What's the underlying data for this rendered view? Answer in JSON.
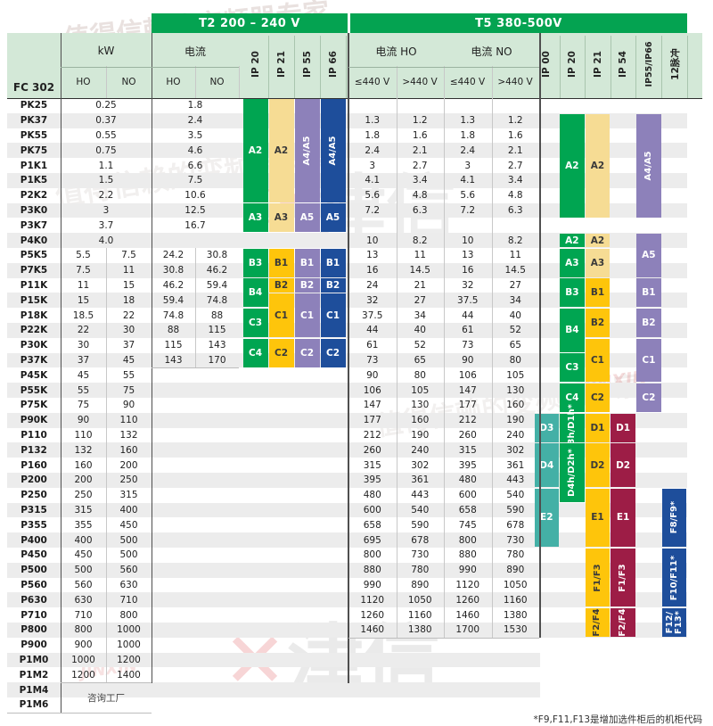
{
  "header": {
    "model_label": "FC 302",
    "kw_label": "kW",
    "ho_label": "HO",
    "no_label": "NO",
    "t2_title": "T2 200 – 240 V",
    "t2_current_label": "电流",
    "t5_title": "T5 380-500V",
    "t5_current_ho_label": "电流 HO",
    "t5_current_no_label": "电流 NO",
    "le440_label": "≤440 V",
    "gt440_label": ">440 V",
    "t2_ip_labels": [
      "IP 20",
      "IP 21",
      "IP 55",
      "IP 66"
    ],
    "t5_ip_labels": [
      "IP 00",
      "IP 20",
      "IP 21",
      "IP 54",
      "IP55/IP66",
      "12脉冲"
    ]
  },
  "colors": {
    "header_bg": "#d3e8d7",
    "title_green": "#04a351",
    "g": "#00a551",
    "py": "#f6dc94",
    "gd": "#fec50b",
    "pu": "#8d81ba",
    "bl": "#1e4e9b",
    "tl": "#44b0a6",
    "mr": "#9d1d46",
    "stripe": "#ececec",
    "dark_line": "#4f4f4f",
    "light_line": "#c8c8c8"
  },
  "rows": [
    {
      "model": "PK25",
      "kw": [
        "0.25"
      ],
      "t2": [
        "1.8"
      ],
      "t5": []
    },
    {
      "model": "PK37",
      "kw": [
        "0.37"
      ],
      "t2": [
        "2.4"
      ],
      "t5": [
        "1.3",
        "1.2",
        "1.3",
        "1.2"
      ]
    },
    {
      "model": "PK55",
      "kw": [
        "0.55"
      ],
      "t2": [
        "3.5"
      ],
      "t5": [
        "1.8",
        "1.6",
        "1.8",
        "1.6"
      ]
    },
    {
      "model": "PK75",
      "kw": [
        "0.75"
      ],
      "t2": [
        "4.6"
      ],
      "t5": [
        "2.4",
        "2.1",
        "2.4",
        "2.1"
      ]
    },
    {
      "model": "P1K1",
      "kw": [
        "1.1"
      ],
      "t2": [
        "6.6"
      ],
      "t5": [
        "3",
        "2.7",
        "3",
        "2.7"
      ]
    },
    {
      "model": "P1K5",
      "kw": [
        "1.5"
      ],
      "t2": [
        "7.5"
      ],
      "t5": [
        "4.1",
        "3.4",
        "4.1",
        "3.4"
      ]
    },
    {
      "model": "P2K2",
      "kw": [
        "2.2"
      ],
      "t2": [
        "10.6"
      ],
      "t5": [
        "5.6",
        "4.8",
        "5.6",
        "4.8"
      ]
    },
    {
      "model": "P3K0",
      "kw": [
        "3"
      ],
      "t2": [
        "12.5"
      ],
      "t5": [
        "7.2",
        "6.3",
        "7.2",
        "6.3"
      ]
    },
    {
      "model": "P3K7",
      "kw": [
        "3.7"
      ],
      "t2": [
        "16.7"
      ],
      "t5": []
    },
    {
      "model": "P4K0",
      "kw": [
        "4.0"
      ],
      "t2": [],
      "t5": [
        "10",
        "8.2",
        "10",
        "8.2"
      ]
    },
    {
      "model": "P5K5",
      "kw": [
        "5.5",
        "7.5"
      ],
      "t2": [
        "24.2",
        "30.8"
      ],
      "t5": [
        "13",
        "11",
        "13",
        "11"
      ]
    },
    {
      "model": "P7K5",
      "kw": [
        "7.5",
        "11"
      ],
      "t2": [
        "30.8",
        "46.2"
      ],
      "t5": [
        "16",
        "14.5",
        "16",
        "14.5"
      ]
    },
    {
      "model": "P11K",
      "kw": [
        "11",
        "15"
      ],
      "t2": [
        "46.2",
        "59.4"
      ],
      "t5": [
        "24",
        "21",
        "32",
        "27"
      ]
    },
    {
      "model": "P15K",
      "kw": [
        "15",
        "18"
      ],
      "t2": [
        "59.4",
        "74.8"
      ],
      "t5": [
        "32",
        "27",
        "37.5",
        "34"
      ]
    },
    {
      "model": "P18K",
      "kw": [
        "18.5",
        "22"
      ],
      "t2": [
        "74.8",
        "88"
      ],
      "t5": [
        "37.5",
        "34",
        "44",
        "40"
      ]
    },
    {
      "model": "P22K",
      "kw": [
        "22",
        "30"
      ],
      "t2": [
        "88",
        "115"
      ],
      "t5": [
        "44",
        "40",
        "61",
        "52"
      ]
    },
    {
      "model": "P30K",
      "kw": [
        "30",
        "37"
      ],
      "t2": [
        "115",
        "143"
      ],
      "t5": [
        "61",
        "52",
        "73",
        "65"
      ]
    },
    {
      "model": "P37K",
      "kw": [
        "37",
        "45"
      ],
      "t2": [
        "143",
        "170"
      ],
      "t5": [
        "73",
        "65",
        "90",
        "80"
      ]
    },
    {
      "model": "P45K",
      "kw": [
        "45",
        "55"
      ],
      "t2": [],
      "t5": [
        "90",
        "80",
        "106",
        "105"
      ]
    },
    {
      "model": "P55K",
      "kw": [
        "55",
        "75"
      ],
      "t2": [],
      "t5": [
        "106",
        "105",
        "147",
        "130"
      ]
    },
    {
      "model": "P75K",
      "kw": [
        "75",
        "90"
      ],
      "t2": [],
      "t5": [
        "147",
        "130",
        "177",
        "160"
      ]
    },
    {
      "model": "P90K",
      "kw": [
        "90",
        "110"
      ],
      "t2": [],
      "t5": [
        "177",
        "160",
        "212",
        "190"
      ]
    },
    {
      "model": "P110",
      "kw": [
        "110",
        "132"
      ],
      "t2": [],
      "t5": [
        "212",
        "190",
        "260",
        "240"
      ]
    },
    {
      "model": "P132",
      "kw": [
        "132",
        "160"
      ],
      "t2": [],
      "t5": [
        "260",
        "240",
        "315",
        "302"
      ]
    },
    {
      "model": "P160",
      "kw": [
        "160",
        "200"
      ],
      "t2": [],
      "t5": [
        "315",
        "302",
        "395",
        "361"
      ]
    },
    {
      "model": "P200",
      "kw": [
        "200",
        "250"
      ],
      "t2": [],
      "t5": [
        "395",
        "361",
        "480",
        "443"
      ]
    },
    {
      "model": "P250",
      "kw": [
        "250",
        "315"
      ],
      "t2": [],
      "t5": [
        "480",
        "443",
        "600",
        "540"
      ]
    },
    {
      "model": "P315",
      "kw": [
        "315",
        "400"
      ],
      "t2": [],
      "t5": [
        "600",
        "540",
        "658",
        "590"
      ]
    },
    {
      "model": "P355",
      "kw": [
        "355",
        "450"
      ],
      "t2": [],
      "t5": [
        "658",
        "590",
        "745",
        "678"
      ]
    },
    {
      "model": "P400",
      "kw": [
        "400",
        "500"
      ],
      "t2": [],
      "t5": [
        "695",
        "678",
        "800",
        "730"
      ]
    },
    {
      "model": "P450",
      "kw": [
        "450",
        "500"
      ],
      "t2": [],
      "t5": [
        "800",
        "730",
        "880",
        "780"
      ]
    },
    {
      "model": "P500",
      "kw": [
        "500",
        "560"
      ],
      "t2": [],
      "t5": [
        "880",
        "780",
        "990",
        "890"
      ]
    },
    {
      "model": "P560",
      "kw": [
        "560",
        "630"
      ],
      "t2": [],
      "t5": [
        "990",
        "890",
        "1120",
        "1050"
      ]
    },
    {
      "model": "P630",
      "kw": [
        "630",
        "710"
      ],
      "t2": [],
      "t5": [
        "1120",
        "1050",
        "1260",
        "1160"
      ]
    },
    {
      "model": "P710",
      "kw": [
        "710",
        "800"
      ],
      "t2": [],
      "t5": [
        "1260",
        "1160",
        "1460",
        "1380"
      ]
    },
    {
      "model": "P800",
      "kw": [
        "800",
        "1000"
      ],
      "t2": [],
      "t5": [
        "1460",
        "1380",
        "1700",
        "1530"
      ]
    },
    {
      "model": "P900",
      "kw": [
        "900",
        "1000"
      ],
      "t2": [],
      "t5": []
    },
    {
      "model": "P1M0",
      "kw": [
        "1000",
        "1200"
      ],
      "t2": [],
      "t5": []
    },
    {
      "model": "P1M2",
      "kw": [
        "1200",
        "1400"
      ],
      "t2": [],
      "t5": []
    },
    {
      "model": "P1M4",
      "kw": [],
      "t2": [],
      "t5": []
    },
    {
      "model": "P1M6",
      "kw": [],
      "t2": [],
      "t5": []
    }
  ],
  "factory_note": "咨询工厂",
  "footnote": "*F9,F11,F13是增加选件柜后的机柜代码",
  "blocks": {
    "t2_ip20": [
      {
        "label": "A2",
        "row": 0,
        "span": 7,
        "c": "g"
      },
      {
        "label": "A3",
        "row": 7,
        "span": 2,
        "c": "g"
      },
      {
        "label": "B3",
        "row": 10,
        "span": 2,
        "c": "g"
      },
      {
        "label": "B4",
        "row": 12,
        "span": 2,
        "c": "g"
      },
      {
        "label": "C3",
        "row": 14,
        "span": 2,
        "c": "g"
      },
      {
        "label": "C4",
        "row": 16,
        "span": 2,
        "c": "g"
      }
    ],
    "t2_ip21": [
      {
        "label": "A2",
        "row": 0,
        "span": 7,
        "c": "py"
      },
      {
        "label": "A3",
        "row": 7,
        "span": 2,
        "c": "py"
      },
      {
        "label": "B1",
        "row": 10,
        "span": 2,
        "c": "gd"
      },
      {
        "label": "B2",
        "row": 12,
        "span": 1,
        "c": "gd"
      },
      {
        "label": "C1",
        "row": 13,
        "span": 3,
        "c": "gd"
      },
      {
        "label": "C2",
        "row": 16,
        "span": 2,
        "c": "gd"
      }
    ],
    "t2_ip55": [
      {
        "label": "A4/A5",
        "row": 0,
        "span": 7,
        "c": "pu",
        "rot": true
      },
      {
        "label": "A5",
        "row": 7,
        "span": 2,
        "c": "pu"
      },
      {
        "label": "B1",
        "row": 10,
        "span": 2,
        "c": "pu"
      },
      {
        "label": "B2",
        "row": 12,
        "span": 1,
        "c": "pu"
      },
      {
        "label": "C1",
        "row": 13,
        "span": 3,
        "c": "pu"
      },
      {
        "label": "C2",
        "row": 16,
        "span": 2,
        "c": "pu"
      }
    ],
    "t2_ip66": [
      {
        "label": "A4/A5",
        "row": 0,
        "span": 7,
        "c": "bl",
        "rot": true
      },
      {
        "label": "A5",
        "row": 7,
        "span": 2,
        "c": "bl"
      },
      {
        "label": "B1",
        "row": 10,
        "span": 2,
        "c": "bl"
      },
      {
        "label": "B2",
        "row": 12,
        "span": 1,
        "c": "bl"
      },
      {
        "label": "C1",
        "row": 13,
        "span": 3,
        "c": "bl"
      },
      {
        "label": "C2",
        "row": 16,
        "span": 2,
        "c": "bl"
      }
    ],
    "t5_ip00": [
      {
        "label": "D3",
        "row": 21,
        "span": 2,
        "c": "tl"
      },
      {
        "label": "D4",
        "row": 23,
        "span": 3,
        "c": "tl"
      },
      {
        "label": "E2",
        "row": 26,
        "span": 4,
        "c": "tl"
      }
    ],
    "t5_ip20": [
      {
        "label": "A2",
        "row": 1,
        "span": 7,
        "c": "g"
      },
      {
        "label": "A2",
        "row": 9,
        "span": 1,
        "c": "g"
      },
      {
        "label": "A3",
        "row": 10,
        "span": 2,
        "c": "g"
      },
      {
        "label": "B3",
        "row": 12,
        "span": 2,
        "c": "g"
      },
      {
        "label": "B4",
        "row": 14,
        "span": 3,
        "c": "g"
      },
      {
        "label": "C3",
        "row": 17,
        "span": 2,
        "c": "g"
      },
      {
        "label": "C4",
        "row": 19,
        "span": 2,
        "c": "g"
      },
      {
        "label": "D3h/D1h*",
        "row": 21,
        "span": 2,
        "c": "g",
        "rot": true
      },
      {
        "label": "D4h/D2h*",
        "row": 23,
        "span": 4,
        "c": "g",
        "rot": true
      }
    ],
    "t5_ip21": [
      {
        "label": "A2",
        "row": 1,
        "span": 7,
        "c": "py"
      },
      {
        "label": "A2",
        "row": 9,
        "span": 1,
        "c": "py"
      },
      {
        "label": "A3",
        "row": 10,
        "span": 2,
        "c": "py"
      },
      {
        "label": "B1",
        "row": 12,
        "span": 2,
        "c": "gd"
      },
      {
        "label": "B2",
        "row": 14,
        "span": 2,
        "c": "gd"
      },
      {
        "label": "C1",
        "row": 16,
        "span": 3,
        "c": "gd"
      },
      {
        "label": "C2",
        "row": 19,
        "span": 2,
        "c": "gd"
      },
      {
        "label": "D1",
        "row": 21,
        "span": 2,
        "c": "gd"
      },
      {
        "label": "D2",
        "row": 23,
        "span": 3,
        "c": "gd"
      },
      {
        "label": "E1",
        "row": 26,
        "span": 4,
        "c": "gd"
      },
      {
        "label": "F1/F3",
        "row": 30,
        "span": 4,
        "c": "gd",
        "rot": true
      },
      {
        "label": "F2/F4",
        "row": 34,
        "span": 2,
        "c": "gd",
        "rot": true
      }
    ],
    "t5_ip54": [
      {
        "label": "D1",
        "row": 21,
        "span": 2,
        "c": "mr"
      },
      {
        "label": "D2",
        "row": 23,
        "span": 3,
        "c": "mr"
      },
      {
        "label": "E1",
        "row": 26,
        "span": 4,
        "c": "mr"
      },
      {
        "label": "F1/F3",
        "row": 30,
        "span": 4,
        "c": "mr",
        "rot": true
      },
      {
        "label": "F2/F4",
        "row": 34,
        "span": 2,
        "c": "mr",
        "rot": true
      }
    ],
    "t5_ip5566": [
      {
        "label": "A4/A5",
        "row": 1,
        "span": 7,
        "c": "pu",
        "rot": true
      },
      {
        "label": "A5",
        "row": 9,
        "span": 3,
        "c": "pu"
      },
      {
        "label": "B1",
        "row": 12,
        "span": 2,
        "c": "pu"
      },
      {
        "label": "B2",
        "row": 14,
        "span": 2,
        "c": "pu"
      },
      {
        "label": "C1",
        "row": 16,
        "span": 3,
        "c": "pu"
      },
      {
        "label": "C2",
        "row": 19,
        "span": 2,
        "c": "pu"
      }
    ],
    "t5_12p": [
      {
        "label": "F8/F9*",
        "row": 26,
        "span": 4,
        "c": "bl",
        "rot": true
      },
      {
        "label": "F10/F11*",
        "row": 30,
        "span": 4,
        "c": "bl",
        "rot": true
      },
      {
        "label": "F12/\nF13*",
        "row": 34,
        "span": 2,
        "c": "bl",
        "rot": true
      }
    ]
  },
  "watermarks": {
    "slogan": "值得信赖的变频器专家",
    "brand_cn": "津信",
    "brand_en": "JINXIN",
    "logo_mark": "✕"
  }
}
